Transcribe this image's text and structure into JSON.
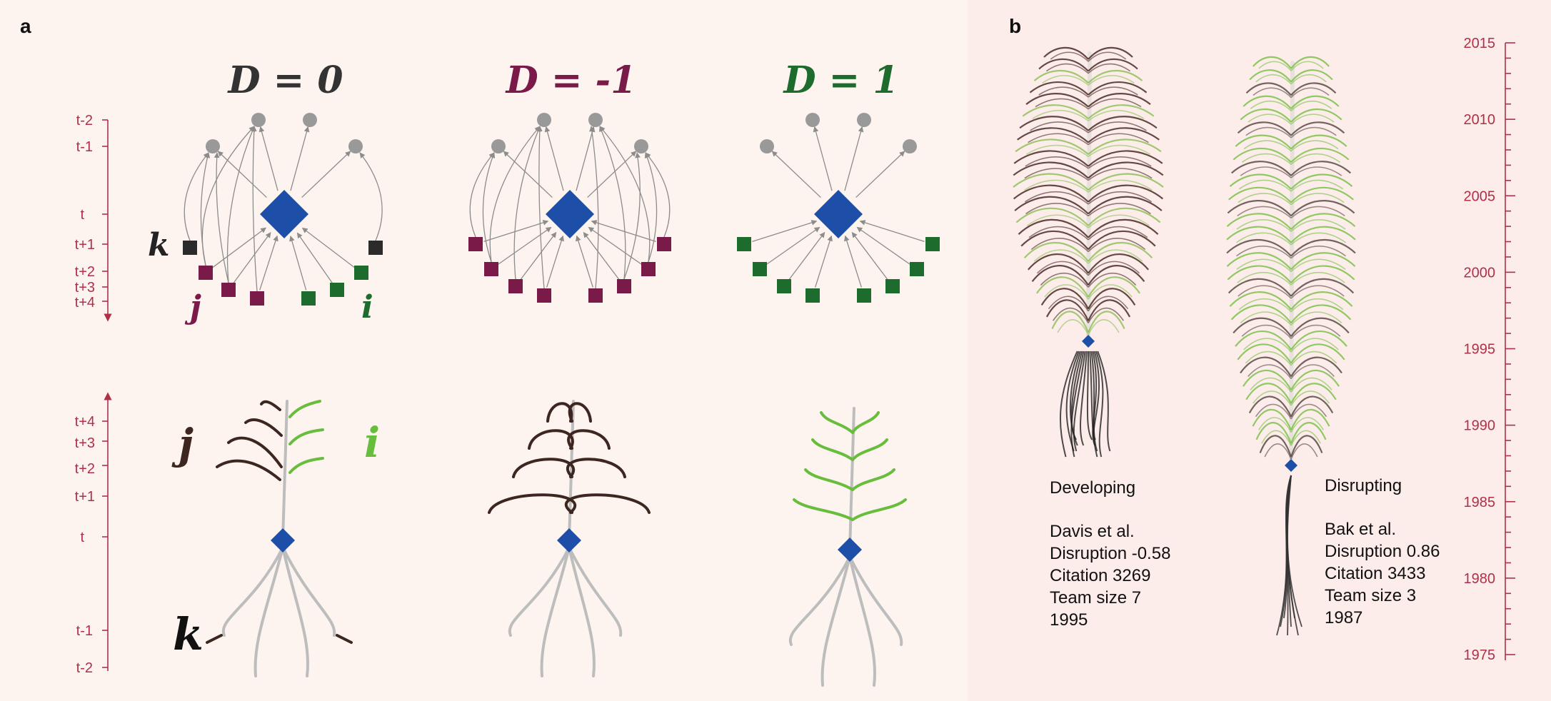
{
  "panels": {
    "a": "a",
    "b": "b"
  },
  "headers": [
    {
      "text": "D = 0",
      "color": "#333333"
    },
    {
      "text": "D = -1",
      "color": "#7a1a48"
    },
    {
      "text": "D = 1",
      "color": "#1e6b2e"
    }
  ],
  "node_labels": {
    "k": "k",
    "j": "j",
    "i": "i"
  },
  "time_axis_top": [
    "t-2",
    "t-1",
    "t",
    "t+1",
    "t+2",
    "t+3",
    "t+4"
  ],
  "time_axis_bottom": [
    "t+4",
    "t+3",
    "t+2",
    "t+1",
    "t",
    "t-1",
    "t-2"
  ],
  "year_axis": [
    "2015",
    "2010",
    "2005",
    "2000",
    "1995",
    "1990",
    "1985",
    "1980",
    "1975"
  ],
  "trees": [
    {
      "type": "Developing",
      "lines": [
        "Davis et al.",
        "Disruption -0.58",
        "Citation 3269",
        "Team size 7",
        "1995"
      ]
    },
    {
      "type": "Disrupting",
      "lines": [
        "Bak et al.",
        "Disruption 0.86",
        "Citation 3433",
        "Team size 3",
        "1987"
      ]
    }
  ],
  "colors": {
    "focal": "#1d4fa8",
    "k_node": "#2b2b2b",
    "j_node": "#7a1a48",
    "i_node": "#1e6b2e",
    "reference": "#999999",
    "brown_branch": "#3d2620",
    "green_branch": "#68bd3c",
    "axis": "#b03048",
    "panel_b_bg": "#fcecea"
  }
}
